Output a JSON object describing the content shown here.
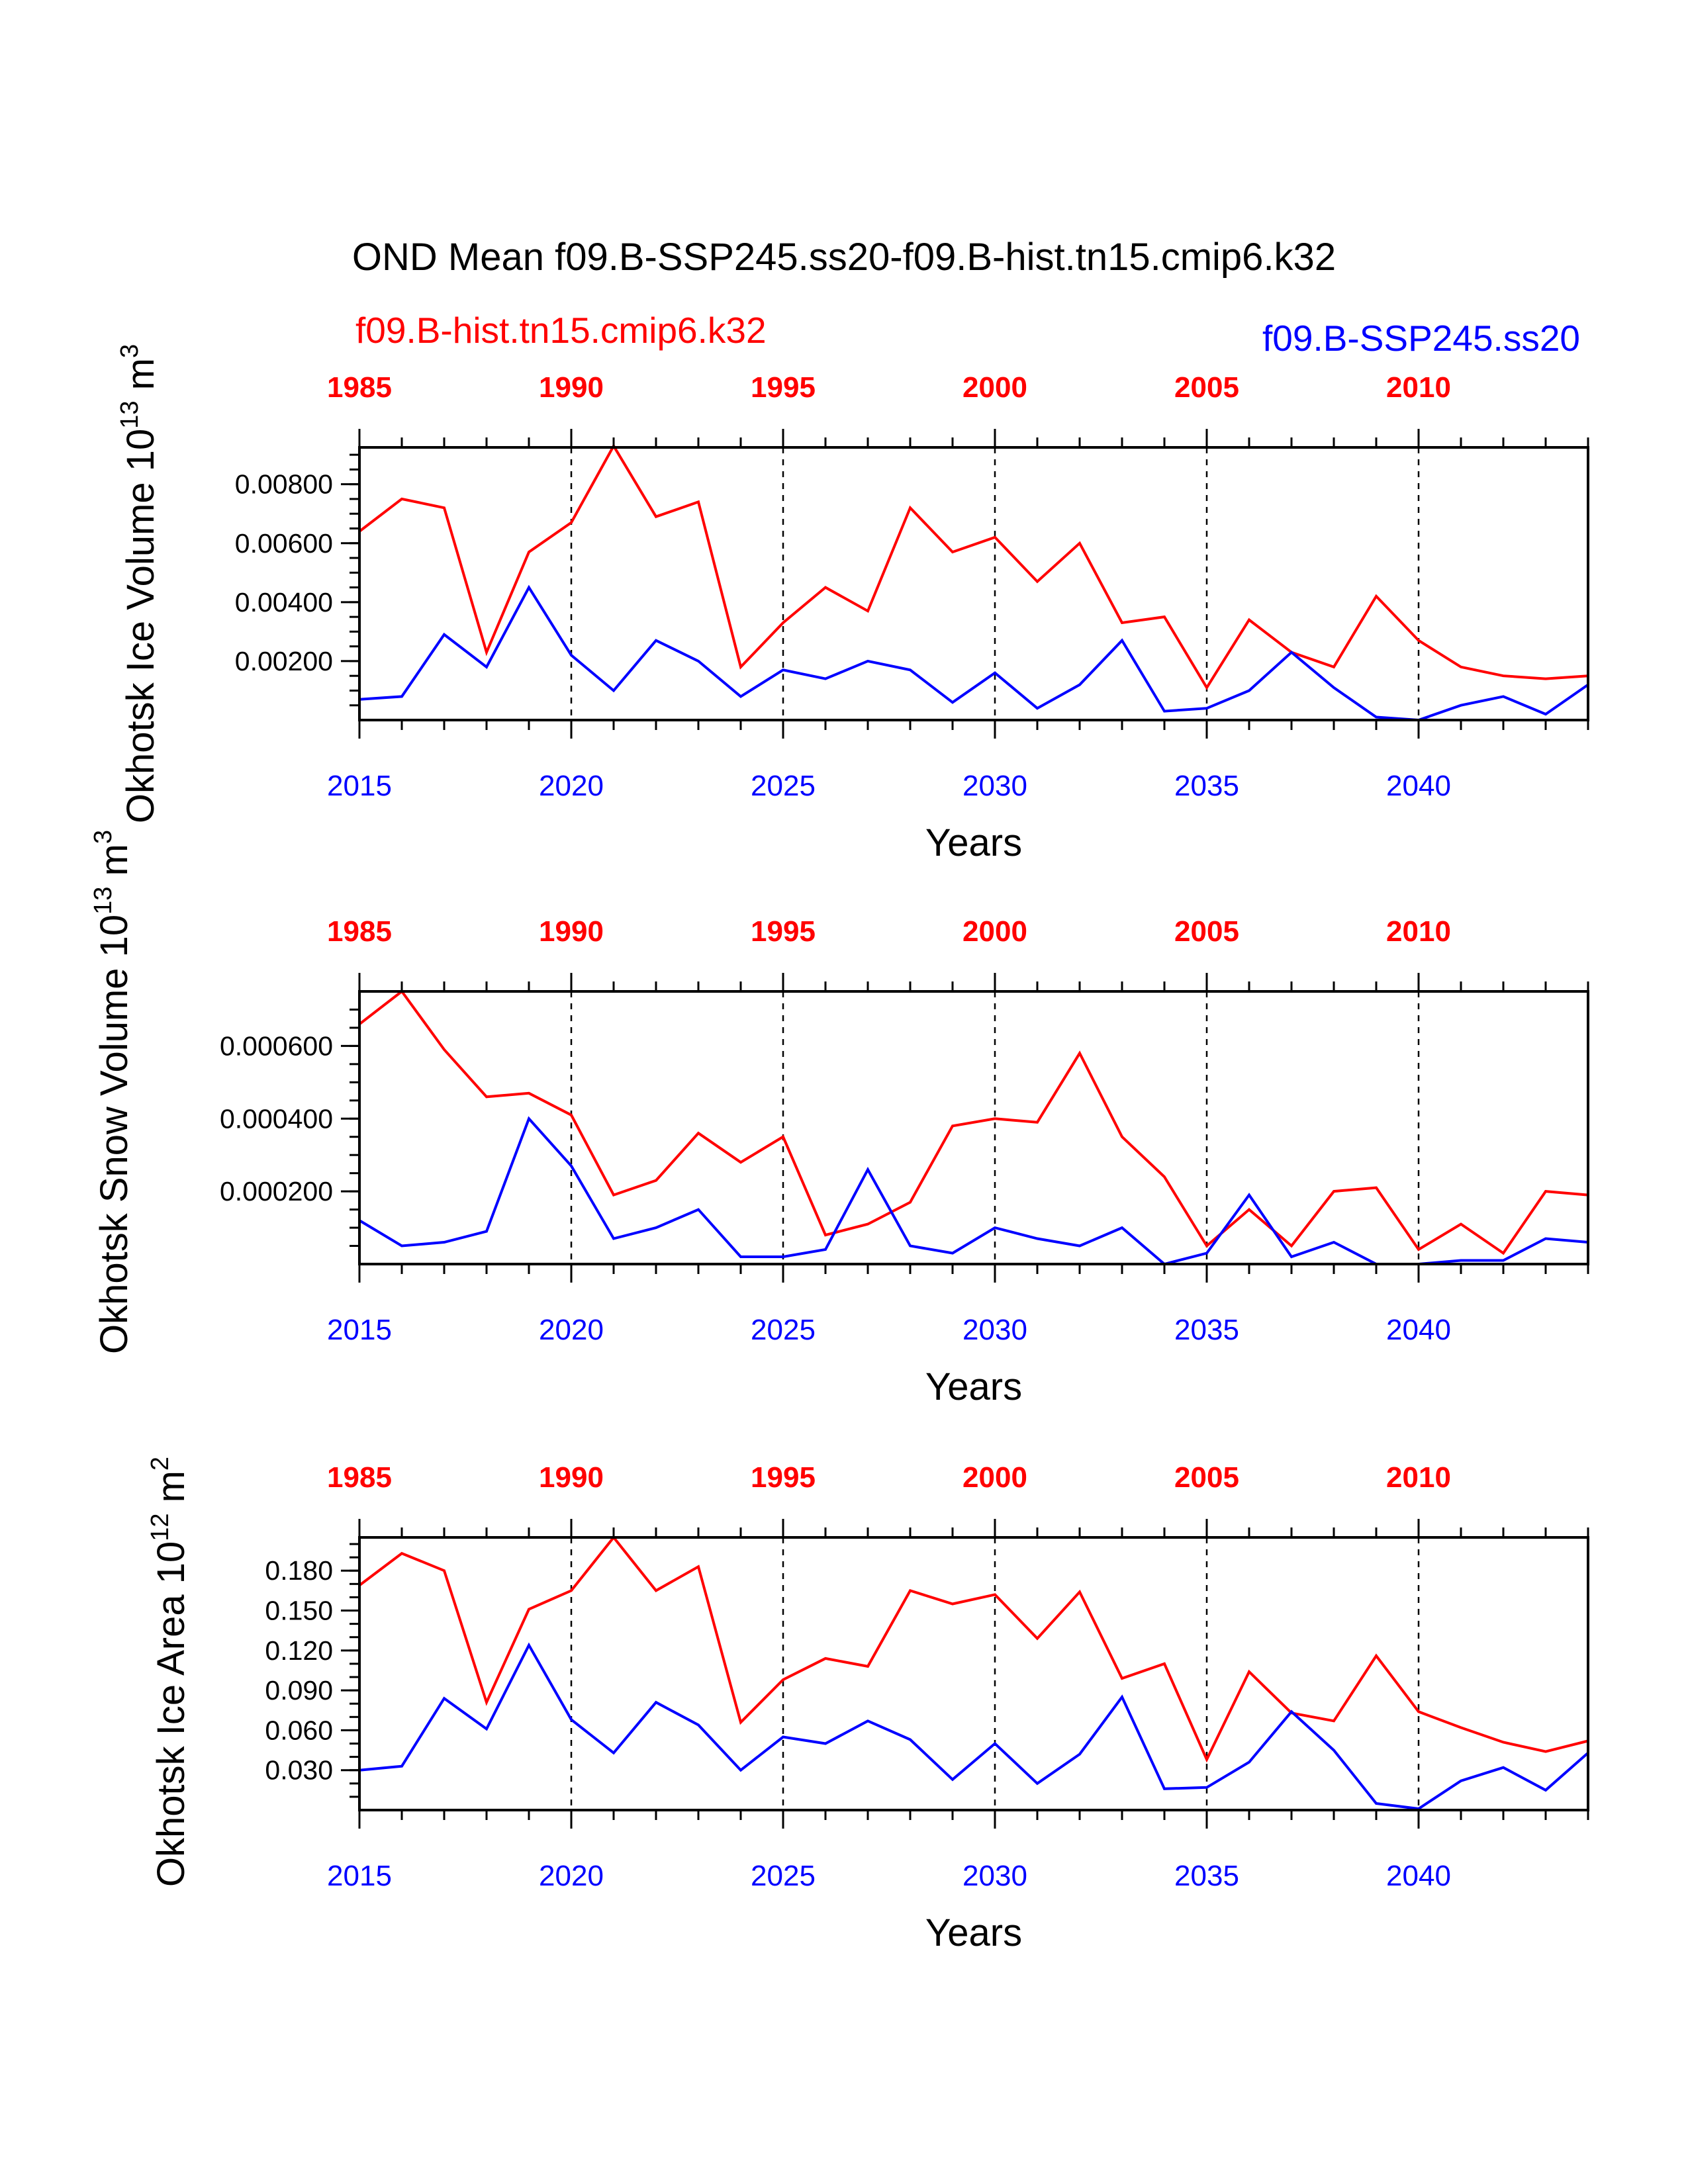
{
  "title": "OND Mean f09.B-SSP245.ss20-f09.B-hist.tn15.cmip6.k32",
  "legend": {
    "hist": {
      "label": "f09.B-hist.tn15.cmip6.k32",
      "color": "#ff0000"
    },
    "ssp": {
      "label": "f09.B-SSP245.ss20",
      "color": "#0000ff"
    }
  },
  "colors": {
    "hist": "#ff0000",
    "ssp": "#0000ff",
    "axis": "#000000"
  },
  "chart_data": [
    {
      "type": "line",
      "ylabel": "Okhotsk Ice Volume 10",
      "ylabel_exp": "13",
      "ylabel_unit": " m",
      "ylabel_unit_exp": "3",
      "xlabel": "Years",
      "xlim": [
        2015,
        2044
      ],
      "ylim": [
        0.0,
        0.00925
      ],
      "yticks": [
        "0.00200",
        "0.00400",
        "0.00600",
        "0.00800"
      ],
      "ytick_values": [
        0.002,
        0.004,
        0.006,
        0.008
      ],
      "yminor": 0.0005,
      "bottom_ticks": [
        "2015",
        "2020",
        "2025",
        "2030",
        "2035",
        "2040"
      ],
      "top_ticks": [
        "1985",
        "1990",
        "1995",
        "2000",
        "2005",
        "2010"
      ],
      "x": [
        2015,
        2016,
        2017,
        2018,
        2019,
        2020,
        2021,
        2022,
        2023,
        2024,
        2025,
        2026,
        2027,
        2028,
        2029,
        2030,
        2031,
        2032,
        2033,
        2034,
        2035,
        2036,
        2037,
        2038,
        2039,
        2040,
        2041,
        2042,
        2043,
        2044
      ],
      "series": [
        {
          "key": "hist",
          "values": [
            0.0064,
            0.0075,
            0.0072,
            0.0023,
            0.0057,
            0.0067,
            0.0093,
            0.0069,
            0.0074,
            0.0018,
            0.0033,
            0.0045,
            0.0037,
            0.0072,
            0.0057,
            0.0062,
            0.0047,
            0.006,
            0.0033,
            0.0035,
            0.0011,
            0.0034,
            0.0023,
            0.0018,
            0.0042,
            0.0027,
            0.0018,
            0.0015,
            0.0014,
            0.0015
          ]
        },
        {
          "key": "ssp",
          "values": [
            0.0007,
            0.0008,
            0.0029,
            0.0018,
            0.0045,
            0.0022,
            0.001,
            0.0027,
            0.002,
            0.0008,
            0.0017,
            0.0014,
            0.002,
            0.0017,
            0.0006,
            0.0016,
            0.0004,
            0.0012,
            0.0027,
            0.0003,
            0.0004,
            0.001,
            0.0023,
            0.0011,
            0.0001,
            0.0,
            0.0005,
            0.0008,
            0.0002,
            0.0012
          ]
        }
      ]
    },
    {
      "type": "line",
      "ylabel": "Okhotsk Snow Volume 10",
      "ylabel_exp": "13",
      "ylabel_unit": " m",
      "ylabel_unit_exp": "3",
      "xlabel": "Years",
      "xlim": [
        2015,
        2044
      ],
      "ylim": [
        0.0,
        0.00075
      ],
      "yticks": [
        "0.000200",
        "0.000400",
        "0.000600"
      ],
      "ytick_values": [
        0.0002,
        0.0004,
        0.0006
      ],
      "yminor": 5e-05,
      "bottom_ticks": [
        "2015",
        "2020",
        "2025",
        "2030",
        "2035",
        "2040"
      ],
      "top_ticks": [
        "1985",
        "1990",
        "1995",
        "2000",
        "2005",
        "2010"
      ],
      "x": [
        2015,
        2016,
        2017,
        2018,
        2019,
        2020,
        2021,
        2022,
        2023,
        2024,
        2025,
        2026,
        2027,
        2028,
        2029,
        2030,
        2031,
        2032,
        2033,
        2034,
        2035,
        2036,
        2037,
        2038,
        2039,
        2040,
        2041,
        2042,
        2043,
        2044
      ],
      "series": [
        {
          "key": "hist",
          "values": [
            0.00066,
            0.00075,
            0.00059,
            0.00046,
            0.00047,
            0.00041,
            0.00019,
            0.00023,
            0.00036,
            0.00028,
            0.00035,
            8e-05,
            0.00011,
            0.00017,
            0.00038,
            0.0004,
            0.00039,
            0.00058,
            0.00035,
            0.00024,
            5e-05,
            0.00015,
            5e-05,
            0.0002,
            0.00021,
            4e-05,
            0.00011,
            3e-05,
            0.0002,
            0.00019
          ]
        },
        {
          "key": "ssp",
          "values": [
            0.00012,
            5e-05,
            6e-05,
            9e-05,
            0.0004,
            0.00027,
            7e-05,
            0.0001,
            0.00015,
            2e-05,
            2e-05,
            4e-05,
            0.00026,
            5e-05,
            3e-05,
            0.0001,
            7e-05,
            5e-05,
            0.0001,
            0.0,
            3e-05,
            0.00019,
            2e-05,
            6e-05,
            0.0,
            0.0,
            1e-05,
            1e-05,
            7e-05,
            6e-05
          ]
        }
      ]
    },
    {
      "type": "line",
      "ylabel": "Okhotsk Ice Area 10",
      "ylabel_exp": "12",
      "ylabel_unit": " m",
      "ylabel_unit_exp": "2",
      "xlabel": "Years",
      "xlim": [
        2015,
        2044
      ],
      "ylim": [
        0.0,
        0.205
      ],
      "yticks": [
        "0.030",
        "0.060",
        "0.090",
        "0.120",
        "0.150",
        "0.180"
      ],
      "ytick_values": [
        0.03,
        0.06,
        0.09,
        0.12,
        0.15,
        0.18
      ],
      "yminor": 0.01,
      "bottom_ticks": [
        "2015",
        "2020",
        "2025",
        "2030",
        "2035",
        "2040"
      ],
      "top_ticks": [
        "1985",
        "1990",
        "1995",
        "2000",
        "2005",
        "2010"
      ],
      "x": [
        2015,
        2016,
        2017,
        2018,
        2019,
        2020,
        2021,
        2022,
        2023,
        2024,
        2025,
        2026,
        2027,
        2028,
        2029,
        2030,
        2031,
        2032,
        2033,
        2034,
        2035,
        2036,
        2037,
        2038,
        2039,
        2040,
        2041,
        2042,
        2043,
        2044
      ],
      "series": [
        {
          "key": "hist",
          "values": [
            0.169,
            0.193,
            0.18,
            0.081,
            0.151,
            0.165,
            0.205,
            0.165,
            0.183,
            0.066,
            0.098,
            0.114,
            0.108,
            0.165,
            0.155,
            0.162,
            0.129,
            0.164,
            0.099,
            0.11,
            0.038,
            0.104,
            0.073,
            0.067,
            0.116,
            0.074,
            0.062,
            0.051,
            0.044,
            0.052
          ]
        },
        {
          "key": "ssp",
          "values": [
            0.03,
            0.033,
            0.084,
            0.061,
            0.124,
            0.068,
            0.043,
            0.081,
            0.064,
            0.03,
            0.055,
            0.05,
            0.067,
            0.053,
            0.023,
            0.05,
            0.02,
            0.042,
            0.085,
            0.016,
            0.017,
            0.036,
            0.074,
            0.045,
            0.005,
            0.001,
            0.022,
            0.032,
            0.015,
            0.043
          ]
        }
      ]
    }
  ]
}
